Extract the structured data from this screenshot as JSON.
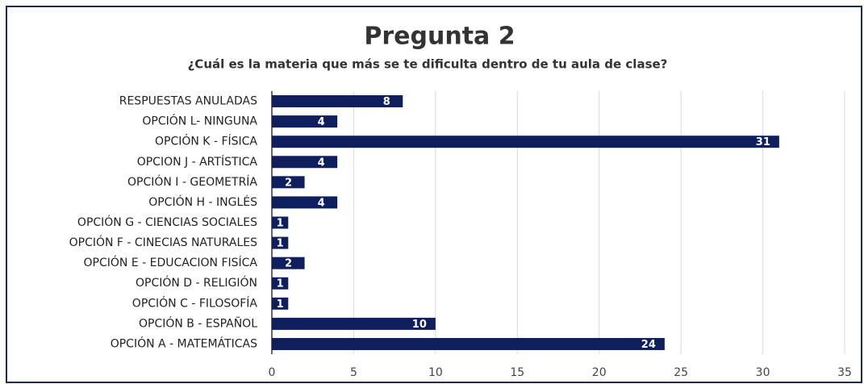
{
  "chart_data": {
    "type": "bar",
    "orientation": "horizontal",
    "title": "Pregunta 2",
    "subtitle": "¿Cuál es la materia que más se te dificulta dentro de tu aula de clase?",
    "categories": [
      "RESPUESTAS ANULADAS",
      "OPCIÓN L- NINGUNA",
      "OPCIÓN K - FÍSICA",
      "OPCION J - ARTÍSTICA",
      "OPCIÓN I - GEOMETRÍA",
      "OPCIÓN H - INGLÉS",
      "OPCIÓN G - CIENCIAS SOCIALES",
      "OPCIÓN F - CINECIAS NATURALES",
      "OPCIÓN E - EDUCACION FISÍCA",
      "OPCIÓN D - RELIGIÓN",
      "OPCIÓN C - FILOSOFÍA",
      "OPCIÓN B - ESPAÑOL",
      "OPCIÓN A - MATEMÁTICAS"
    ],
    "values": [
      8,
      4,
      31,
      4,
      2,
      4,
      1,
      1,
      2,
      1,
      1,
      10,
      24
    ],
    "color": "#0f1f5e",
    "xlim": [
      0,
      35
    ],
    "xticks": [
      0,
      5,
      10,
      15,
      20,
      25,
      30,
      35
    ],
    "grid": true
  }
}
